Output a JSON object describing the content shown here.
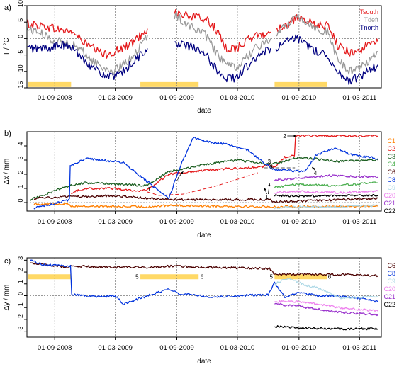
{
  "chart_data": [
    {
      "panel": "a)",
      "type": "line",
      "xlabel": "date",
      "ylabel": "T / °C",
      "ylim": [
        -15,
        10
      ],
      "xlim": [
        "2008-06-10",
        "2011-05-05"
      ],
      "y_ticks": [
        "-15",
        "-10",
        "-5",
        "0",
        "5",
        "10"
      ],
      "x_ticks": [
        "01-09-2008",
        "01-03-2009",
        "01-09-2009",
        "01-03-2010",
        "01-09-2010",
        "01-03-2011"
      ],
      "x_tick_dates": [
        "2008-09-01",
        "2009-03-01",
        "2009-09-01",
        "2010-03-01",
        "2010-09-01",
        "2011-03-01"
      ],
      "gaps": [
        [
          "2009-06-05",
          "2009-08-08"
        ],
        [
          "2010-06-08",
          "2010-06-24"
        ]
      ],
      "legend_position": "top-right",
      "shaded_periods": [
        [
          "2008-06-14",
          "2008-10-20"
        ],
        [
          "2009-05-15",
          "2009-11-05"
        ],
        [
          "2010-06-20",
          "2010-11-25"
        ]
      ],
      "shade_y": -14,
      "series": [
        {
          "name": "Tsouth",
          "color": "#e41a1c",
          "x": [
            "2008-06-10",
            "2008-07-15",
            "2008-08-15",
            "2008-09-20",
            "2008-10-25",
            "2008-11-25",
            "2008-12-25",
            "2009-01-25",
            "2009-02-25",
            "2009-03-25",
            "2009-04-25",
            "2009-05-25",
            "2009-06-05",
            "2009-08-08",
            "2009-08-25",
            "2009-09-25",
            "2009-10-25",
            "2009-11-25",
            "2009-12-25",
            "2010-01-25",
            "2010-02-25",
            "2010-03-25",
            "2010-04-25",
            "2010-05-25",
            "2010-06-08",
            "2010-06-24",
            "2010-07-25",
            "2010-08-25",
            "2010-09-25",
            "2010-10-25",
            "2010-11-25",
            "2010-12-25",
            "2011-01-25",
            "2011-02-25",
            "2011-03-25",
            "2011-04-25"
          ],
          "y": [
            4.5,
            4,
            3.5,
            2.5,
            2,
            -1,
            -3,
            -5,
            -4,
            -3,
            -1,
            2,
            3,
            null,
            8,
            7,
            6.5,
            6,
            3,
            -3,
            -3,
            -1,
            1,
            1,
            2,
            3,
            4,
            6,
            5,
            4,
            4,
            -2,
            -4,
            -4,
            -2,
            -1
          ]
        },
        {
          "name": "Tdeft",
          "color": "#999999",
          "x": [
            "2008-06-10",
            "2008-07-15",
            "2008-08-15",
            "2008-09-20",
            "2008-10-25",
            "2008-11-25",
            "2008-12-25",
            "2009-01-25",
            "2009-02-25",
            "2009-03-25",
            "2009-04-25",
            "2009-05-25",
            "2009-06-05",
            "2009-08-08",
            "2009-08-25",
            "2009-09-25",
            "2009-10-25",
            "2009-11-25",
            "2009-12-25",
            "2010-01-25",
            "2010-02-25",
            "2010-03-25",
            "2010-04-25",
            "2010-05-25",
            "2010-06-08",
            "2010-06-24",
            "2010-07-25",
            "2010-08-25",
            "2010-09-25",
            "2010-10-25",
            "2010-11-25",
            "2010-12-25",
            "2011-01-25",
            "2011-02-25",
            "2011-03-25",
            "2011-04-25"
          ],
          "y": [
            3,
            2,
            0,
            -1,
            -2,
            -4,
            -7,
            -9,
            -10,
            -8,
            -5,
            -1,
            1,
            null,
            7,
            5,
            3,
            1,
            -4,
            -8,
            -9,
            -6,
            -3,
            -1,
            0,
            1,
            4,
            7,
            5,
            3,
            2,
            -6,
            -10,
            -9,
            -7,
            -4
          ]
        },
        {
          "name": "Tnorth",
          "color": "#000080",
          "x": [
            "2008-06-10",
            "2008-07-15",
            "2008-08-15",
            "2008-09-20",
            "2008-10-25",
            "2008-11-25",
            "2008-12-25",
            "2009-01-25",
            "2009-02-25",
            "2009-03-25",
            "2009-04-25",
            "2009-05-25",
            "2009-06-05",
            "2009-08-08",
            "2009-08-25",
            "2009-09-25",
            "2009-10-25",
            "2009-11-25",
            "2009-12-25",
            "2010-01-25",
            "2010-02-25",
            "2010-03-25",
            "2010-04-25",
            "2010-05-25",
            "2010-06-08",
            "2010-06-24",
            "2010-07-25",
            "2010-08-25",
            "2010-09-25",
            "2010-10-25",
            "2010-11-25",
            "2010-12-25",
            "2011-01-25",
            "2011-02-25",
            "2011-03-25",
            "2011-04-25"
          ],
          "y": [
            -3,
            -3,
            -3,
            -2,
            -3,
            -6,
            -9,
            -11,
            -12,
            -10,
            -7,
            -4,
            -3,
            null,
            -2,
            -2,
            -3,
            -5,
            -9,
            -12,
            -12,
            -9,
            -6,
            -4,
            -3,
            -3,
            -1,
            0,
            -2,
            -4,
            -5,
            -10,
            -13,
            -12,
            -10,
            -8
          ]
        }
      ]
    },
    {
      "panel": "b)",
      "type": "line",
      "xlabel": "date",
      "ylabel": "Δx / mm",
      "ylim": [
        -0.6,
        5.0
      ],
      "xlim": [
        "2008-06-10",
        "2011-05-05"
      ],
      "y_ticks": [
        "0",
        "1",
        "2",
        "3",
        "4"
      ],
      "x_ticks": [
        "01-09-2008",
        "01-03-2009",
        "01-09-2009",
        "01-03-2010",
        "01-09-2010",
        "01-03-2011"
      ],
      "x_tick_dates": [
        "2008-09-01",
        "2009-03-01",
        "2009-09-01",
        "2010-03-01",
        "2010-09-01",
        "2011-03-01"
      ],
      "legend_position": "right",
      "annotations": [
        {
          "text": "1",
          "x": "2009-06-10",
          "y": 0.95
        },
        {
          "text": "1",
          "x": "2010-05-28",
          "y": 0.4
        },
        {
          "text": "2",
          "x": "2010-07-20",
          "y": 4.7
        },
        {
          "text": "3",
          "x": "2010-06-04",
          "y": 2.9
        },
        {
          "text": "4",
          "x": "2009-09-05",
          "y": 1.6
        },
        {
          "text": "4",
          "x": "2010-10-20",
          "y": 2.1
        }
      ],
      "arrows": [
        {
          "from": [
            "2010-07-28",
            4.7
          ],
          "to": [
            "2010-08-24",
            4.7
          ]
        },
        {
          "from": [
            "2010-06-05",
            2.7
          ],
          "to": [
            "2010-06-14",
            2.45
          ]
        },
        {
          "from": [
            "2010-05-28",
            0.6
          ],
          "to": [
            "2010-05-20",
            1.05
          ]
        },
        {
          "from": [
            "2010-06-01",
            0.6
          ],
          "to": [
            "2010-06-05",
            1.35
          ]
        },
        {
          "from": [
            "2009-09-05",
            1.75
          ],
          "to": [
            "2009-09-20",
            2.2
          ]
        },
        {
          "from": [
            "2010-10-20",
            2.25
          ],
          "to": [
            "2010-10-10",
            2.5
          ]
        }
      ],
      "series": [
        {
          "name": "C1",
          "color": "#ff7f00",
          "x": [
            "2008-07-01",
            "2008-10-15",
            "2008-10-20",
            "2009-06-05",
            "2009-08-08",
            "2010-06-05",
            "2010-06-20",
            "2011-04-25"
          ],
          "y": [
            -0.1,
            -0.1,
            -0.25,
            -0.3,
            -0.2,
            -0.3,
            -0.3,
            -0.25
          ]
        },
        {
          "name": "C2",
          "color": "#e41a1c",
          "x": [
            "2008-10-20",
            "2008-12-01",
            "2009-03-01",
            "2009-05-15",
            "2009-06-05",
            "2009-08-08",
            "2009-12-01",
            "2010-05-01",
            "2010-06-05",
            "2010-06-20",
            "2010-07-20",
            "2010-08-15",
            "2010-08-25",
            "2011-04-25"
          ],
          "y": [
            0.7,
            1.0,
            1.0,
            0.8,
            0.9,
            2.0,
            2.3,
            2.5,
            2.6,
            2.5,
            3.2,
            3.3,
            4.7,
            4.7
          ]
        },
        {
          "name": "C3",
          "color": "#1b5e20",
          "x": [
            "2008-06-20",
            "2008-10-15",
            "2008-10-20",
            "2008-12-01",
            "2009-03-01",
            "2009-06-05",
            "2009-08-08",
            "2009-12-01",
            "2010-03-01",
            "2010-06-05",
            "2010-07-20",
            "2010-09-01",
            "2011-01-01",
            "2011-04-25"
          ],
          "y": [
            0.2,
            1.2,
            1.2,
            1.4,
            1.3,
            1.2,
            2.2,
            2.7,
            3.0,
            2.7,
            2.9,
            3.2,
            2.9,
            3.0
          ]
        },
        {
          "name": "C4",
          "color": "#4caf50",
          "x": [
            "2010-06-20",
            "2010-09-01",
            "2010-12-01",
            "2011-04-25"
          ],
          "y": [
            1.1,
            1.3,
            1.2,
            1.4
          ]
        },
        {
          "name": "C6",
          "color": "#4a0000",
          "x": [
            "2008-07-01",
            "2008-10-15",
            "2008-10-20",
            "2009-03-01",
            "2009-06-05",
            "2009-08-08",
            "2010-06-05",
            "2010-06-20",
            "2011-04-25"
          ],
          "y": [
            0.3,
            0.4,
            0.4,
            0.5,
            0.3,
            0.2,
            0.2,
            0.05,
            0.3
          ]
        },
        {
          "name": "C8",
          "color": "#0033dd",
          "x": [
            "2008-07-01",
            "2008-10-15",
            "2008-10-20",
            "2008-12-01",
            "2009-03-01",
            "2009-03-25",
            "2009-08-08",
            "2009-09-10",
            "2009-10-20",
            "2009-12-01",
            "2010-02-01",
            "2010-04-01",
            "2010-06-05",
            "2010-06-20",
            "2010-09-20",
            "2010-10-20",
            "2010-12-20",
            "2011-02-01",
            "2011-04-25"
          ],
          "y": [
            -0.4,
            0.2,
            2.6,
            3.1,
            2.9,
            2.8,
            0.3,
            2.5,
            4.6,
            4.3,
            4.1,
            3.7,
            2.5,
            2.3,
            2.2,
            3.3,
            3.9,
            3.4,
            3.1
          ]
        },
        {
          "name": "C9",
          "color": "#add8e6",
          "x": [
            "2010-06-20",
            "2010-09-01",
            "2011-01-01",
            "2011-04-25"
          ],
          "y": [
            -0.4,
            -0.3,
            -0.3,
            -0.2
          ]
        },
        {
          "name": "C20",
          "color": "#ee82ee",
          "x": [
            "2010-06-20",
            "2010-09-01",
            "2011-01-01",
            "2011-04-25"
          ],
          "y": [
            0.7,
            0.8,
            0.7,
            0.8
          ]
        },
        {
          "name": "C21",
          "color": "#9932cc",
          "x": [
            "2010-06-20",
            "2010-09-01",
            "2010-12-01",
            "2011-04-25"
          ],
          "y": [
            1.6,
            1.7,
            1.9,
            1.8
          ]
        },
        {
          "name": "C22",
          "color": "#000000",
          "x": [
            "2010-06-20",
            "2010-09-01",
            "2011-01-01",
            "2011-04-25"
          ],
          "y": [
            0.5,
            0.45,
            0.5,
            0.5
          ]
        },
        {
          "name": "",
          "color": "#e41a1c",
          "dashed": true,
          "x": [
            "2009-06-05",
            "2009-07-10",
            "2009-09-20",
            "2010-01-01",
            "2010-05-01"
          ],
          "y": [
            0.75,
            0.5,
            0.6,
            1.2,
            2.1
          ]
        },
        {
          "name": "",
          "color": "#555555",
          "dashed": true,
          "x": [
            "2010-05-20",
            "2010-08-20"
          ],
          "y": [
            2.45,
            2.45
          ]
        }
      ]
    },
    {
      "panel": "c)",
      "type": "line",
      "xlabel": "date",
      "ylabel": "Δy / mm",
      "ylim": [
        -3.5,
        3.2
      ],
      "xlim": [
        "2008-06-10",
        "2011-05-05"
      ],
      "y_ticks": [
        "-3",
        "-2",
        "-1",
        "0",
        "1",
        "2",
        "3"
      ],
      "x_ticks": [
        "01-09-2008",
        "01-03-2009",
        "01-09-2009",
        "01-03-2010",
        "01-09-2010",
        "01-03-2011"
      ],
      "x_tick_dates": [
        "2008-09-01",
        "2009-03-01",
        "2009-09-01",
        "2010-03-01",
        "2010-09-01",
        "2011-03-01"
      ],
      "legend_position": "right",
      "shaded_periods": [
        [
          "2008-06-14",
          "2008-10-20"
        ],
        [
          "2009-05-15",
          "2009-11-05"
        ],
        [
          "2010-06-20",
          "2010-11-25"
        ]
      ],
      "shade_y": 1.6,
      "annotations": [
        {
          "text": "5",
          "x": "2009-05-05",
          "y": 1.6
        },
        {
          "text": "6",
          "x": "2009-11-15",
          "y": 1.6
        },
        {
          "text": "5",
          "x": "2010-06-10",
          "y": 1.6
        },
        {
          "text": "6",
          "x": "2010-12-01",
          "y": 1.6
        }
      ],
      "series": [
        {
          "name": "C6",
          "color": "#4a0000",
          "x": [
            "2008-06-20",
            "2008-08-01",
            "2008-10-15",
            "2008-10-20",
            "2009-03-01",
            "2009-06-05",
            "2009-08-08",
            "2009-12-01",
            "2010-06-05",
            "2010-06-20",
            "2010-12-01",
            "2011-04-25"
          ],
          "y": [
            2.8,
            2.6,
            2.4,
            2.5,
            2.4,
            2.4,
            2.5,
            2.4,
            2.3,
            1.8,
            1.8,
            1.7
          ]
        },
        {
          "name": "C8",
          "color": "#0033dd",
          "x": [
            "2008-06-20",
            "2008-08-01",
            "2008-10-15",
            "2008-10-25",
            "2009-01-01",
            "2009-03-01",
            "2009-03-25",
            "2009-08-10",
            "2009-09-10",
            "2009-10-01",
            "2009-12-01",
            "2010-03-01",
            "2010-06-01",
            "2010-06-20",
            "2010-07-20",
            "2010-09-01",
            "2010-10-20",
            "2010-12-01",
            "2011-02-01",
            "2011-04-25"
          ],
          "y": [
            3.0,
            2.6,
            2.5,
            0.1,
            -0.1,
            0.0,
            -0.7,
            0.6,
            0.1,
            0.2,
            -0.1,
            0.0,
            0.1,
            1.1,
            -0.1,
            0.3,
            0.0,
            0.0,
            -0.1,
            -0.5
          ]
        },
        {
          "name": "C9",
          "color": "#add8e6",
          "x": [
            "2010-06-20",
            "2010-08-01",
            "2010-09-20",
            "2010-11-01",
            "2011-01-01",
            "2011-04-25"
          ],
          "y": [
            1.0,
            1.5,
            0.9,
            0.6,
            -0.2,
            -0.1
          ]
        },
        {
          "name": "C20",
          "color": "#ee82ee",
          "x": [
            "2010-06-20",
            "2010-09-01",
            "2011-01-01",
            "2011-04-25"
          ],
          "y": [
            -0.5,
            -0.5,
            -1.0,
            -1.3
          ]
        },
        {
          "name": "C21",
          "color": "#9932cc",
          "x": [
            "2010-06-20",
            "2010-09-01",
            "2011-01-01",
            "2011-04-25"
          ],
          "y": [
            -0.7,
            -0.9,
            -1.4,
            -1.6
          ]
        },
        {
          "name": "C22",
          "color": "#000000",
          "x": [
            "2010-06-20",
            "2010-09-01",
            "2011-01-01",
            "2011-04-25"
          ],
          "y": [
            -2.6,
            -2.7,
            -2.8,
            -2.8
          ]
        }
      ]
    }
  ]
}
